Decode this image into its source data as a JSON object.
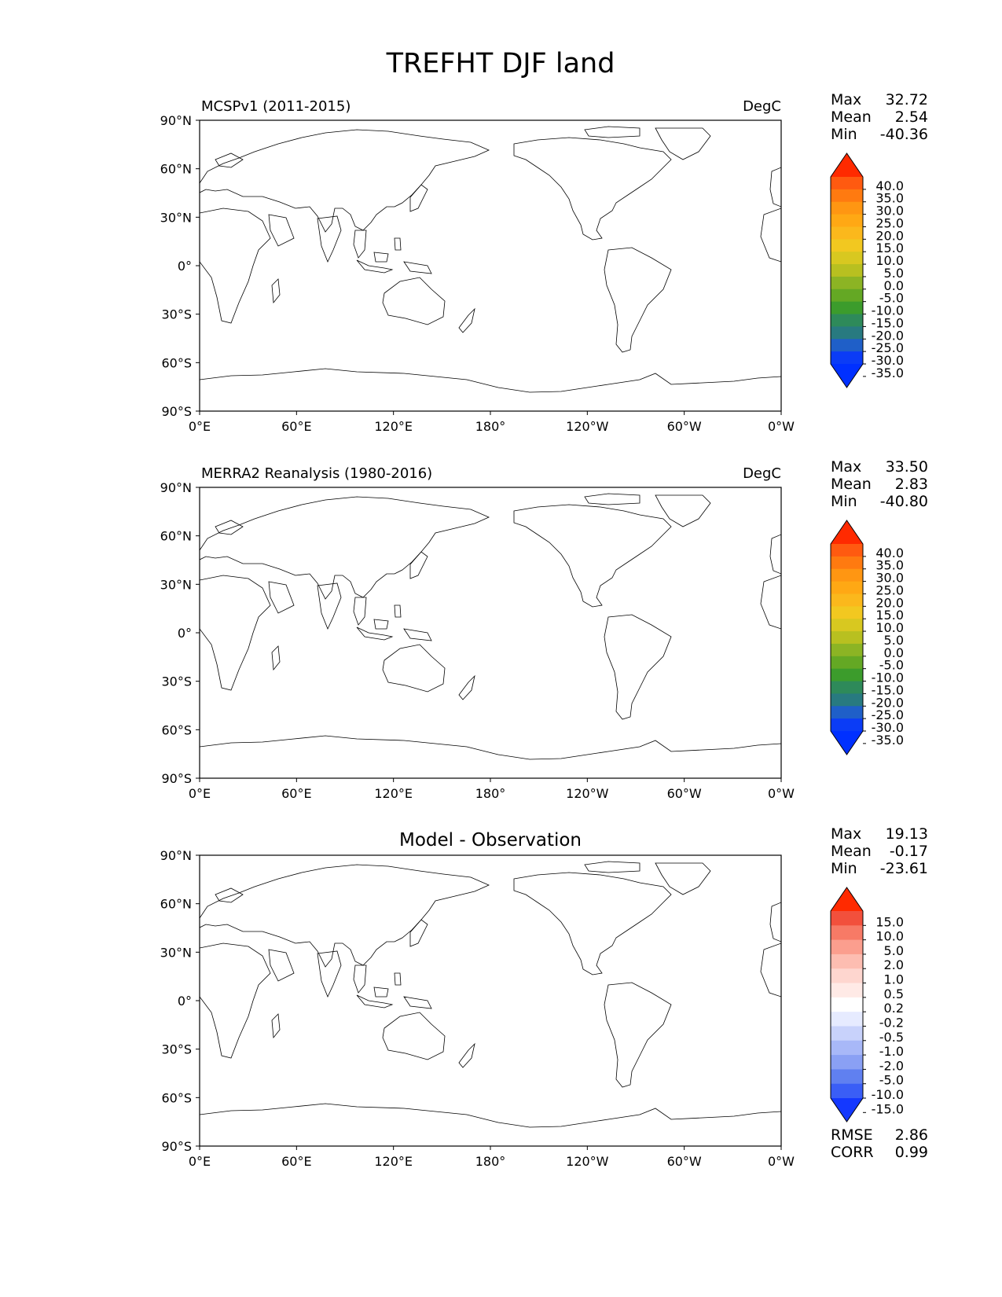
{
  "title": "TREFHT DJF land",
  "lat_ticks": [
    "90°N",
    "60°N",
    "30°N",
    "0°",
    "30°S",
    "60°S",
    "90°S"
  ],
  "lon_ticks": [
    "0°E",
    "60°E",
    "120°E",
    "180°",
    "120°W",
    "60°W",
    "0°W"
  ],
  "stat_labels": {
    "max": "Max",
    "mean": "Mean",
    "min": "Min"
  },
  "panels": [
    {
      "left_title": "MCSPv1 (2011-2015)",
      "center_title": "",
      "units": "DegC",
      "stats": {
        "max": "32.72",
        "mean": "2.54",
        "min": "-40.36"
      },
      "colorbar": {
        "labels": [
          "40.0",
          "35.0",
          "30.0",
          "25.0",
          "20.0",
          "15.0",
          "10.0",
          "5.0",
          "0.0",
          "-5.0",
          "-10.0",
          "-15.0",
          "-20.0",
          "-25.0",
          "-30.0",
          "-35.0"
        ],
        "colors": [
          "#ff2a00",
          "#ff5a10",
          "#ff7a10",
          "#ff9612",
          "#ffa814",
          "#fbb81c",
          "#f2c820",
          "#d8c820",
          "#b8c020",
          "#8cb424",
          "#64a824",
          "#3c9c2c",
          "#2e8a5a",
          "#287a80",
          "#1f5fc8",
          "#0b3cf6",
          "#0030ff"
        ]
      }
    },
    {
      "left_title": "MERRA2 Reanalysis (1980-2016)",
      "center_title": "",
      "units": "DegC",
      "stats": {
        "max": "33.50",
        "mean": "2.83",
        "min": "-40.80"
      },
      "colorbar": {
        "labels": [
          "40.0",
          "35.0",
          "30.0",
          "25.0",
          "20.0",
          "15.0",
          "10.0",
          "5.0",
          "0.0",
          "-5.0",
          "-10.0",
          "-15.0",
          "-20.0",
          "-25.0",
          "-30.0",
          "-35.0"
        ],
        "colors": [
          "#ff2a00",
          "#ff5a10",
          "#ff7a10",
          "#ff9612",
          "#ffa814",
          "#fbb81c",
          "#f2c820",
          "#d8c820",
          "#b8c020",
          "#8cb424",
          "#64a824",
          "#3c9c2c",
          "#2e8a5a",
          "#287a80",
          "#1f5fc8",
          "#0b3cf6",
          "#0030ff"
        ]
      }
    },
    {
      "left_title": "",
      "center_title": "Model - Observation",
      "units": "",
      "stats": {
        "max": "19.13",
        "mean": "-0.17",
        "min": "-23.61"
      },
      "colorbar": {
        "labels": [
          "15.0",
          "10.0",
          "5.0",
          "2.0",
          "1.0",
          "0.5",
          "0.2",
          "-0.2",
          "-0.5",
          "-1.0",
          "-2.0",
          "-5.0",
          "-10.0",
          "-15.0"
        ],
        "colors": [
          "#ff2a00",
          "#f2503c",
          "#f77a66",
          "#fb9e8e",
          "#fdbdb1",
          "#fed6cf",
          "#ffeae6",
          "#ffffff",
          "#e6ebff",
          "#c8d2fb",
          "#a8b8f8",
          "#8aa0f4",
          "#6080f0",
          "#3a5ef6",
          "#1438ff"
        ]
      },
      "extra_stats": [
        {
          "label": "RMSE",
          "value": "2.86"
        },
        {
          "label": "CORR",
          "value": "0.99"
        }
      ]
    }
  ]
}
